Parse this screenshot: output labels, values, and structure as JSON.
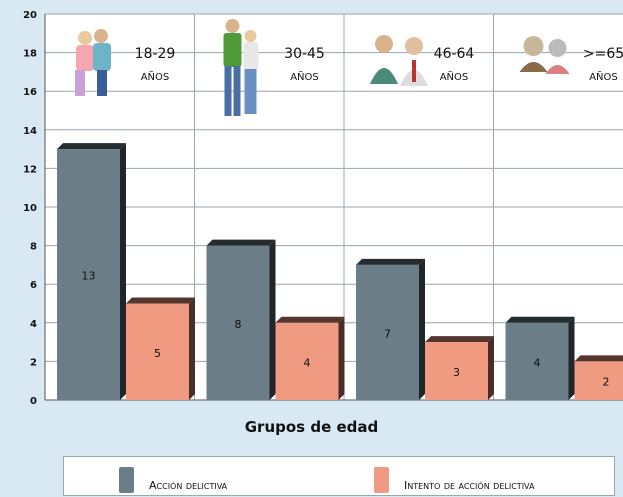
{
  "chart_data": {
    "type": "bar",
    "categories": [
      "18-29 AÑOS",
      "30-45 AÑOS",
      "46-64 AÑOS",
      ">=65 AÑOS"
    ],
    "category_lines": [
      [
        "18-29",
        "AÑOS"
      ],
      [
        "30-45",
        "AÑOS"
      ],
      [
        "46-64",
        "AÑOS"
      ],
      [
        ">=65",
        "AÑOS"
      ]
    ],
    "series": [
      {
        "name": "Acción delictiva",
        "values": [
          13,
          8,
          7,
          4
        ],
        "color": "#6b7d87"
      },
      {
        "name": "Intento de acción delictiva",
        "values": [
          5,
          4,
          3,
          2
        ],
        "color": "#f19a82"
      }
    ],
    "ylim": [
      0,
      20
    ],
    "yticks": [
      0,
      2,
      4,
      6,
      8,
      10,
      12,
      14,
      16,
      18,
      20
    ],
    "xlabel": "Grupos de edad",
    "ylabel": "",
    "title": "",
    "grid": true,
    "legend_position": "bottom",
    "plot_background": "#ffffff",
    "page_background": "#d9e9f4",
    "category_icons": [
      "people-group-young-icon",
      "couple-adults-icon",
      "couple-middle-aged-icon",
      "couple-elderly-icon"
    ]
  }
}
